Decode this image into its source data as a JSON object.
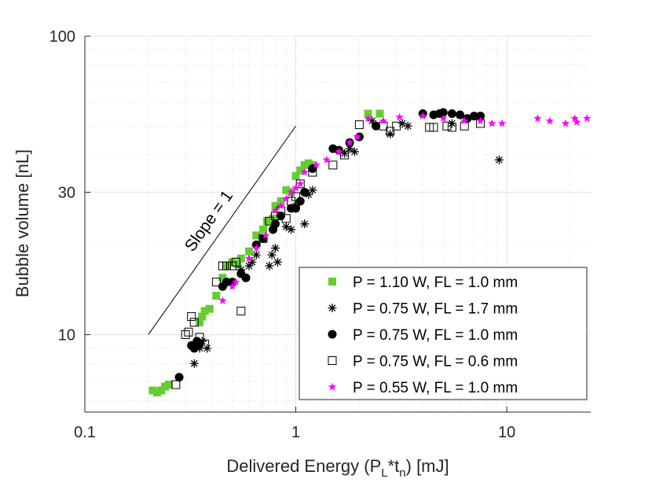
{
  "chart_data": {
    "type": "scatter",
    "xscale": "log",
    "yscale": "log",
    "xlim": [
      0.1,
      25
    ],
    "ylim": [
      5.5,
      100
    ],
    "xticks": [
      0.1,
      1,
      10
    ],
    "xtick_labels": [
      "0.1",
      "1",
      "10"
    ],
    "yticks": [
      10,
      30,
      100
    ],
    "ytick_labels": [
      "10",
      "30",
      "100"
    ],
    "xlabel": {
      "main": "Delivered Energy (P",
      "sub1": "L",
      "mid": "*t",
      "sub2": "n",
      "end": ") [mJ]"
    },
    "ylabel": "Bubble volume [nL]",
    "grid": true,
    "legend_position": "bottom-right",
    "annotation": {
      "text": "Slope = 1",
      "line_x": [
        0.2,
        1.0
      ],
      "line_y": [
        10,
        50
      ]
    },
    "colors": {
      "green": "#66cc33",
      "black": "#000000",
      "magenta": "#ff00ff"
    },
    "series": [
      {
        "name": "P = 1.10 W, FL = 1.0 mm",
        "marker": "filled-square",
        "color": "#66cc33",
        "x": [
          0.21,
          0.22,
          0.23,
          0.24,
          0.25,
          0.35,
          0.36,
          0.37,
          0.39,
          0.42,
          0.45,
          0.47,
          0.5,
          0.53,
          0.55,
          0.6,
          0.65,
          0.7,
          0.73,
          0.78,
          0.8,
          0.85,
          0.9,
          0.95,
          1.0,
          1.05,
          1.1,
          1.15,
          1.2,
          2.2,
          2.5
        ],
        "y": [
          6.5,
          6.4,
          6.5,
          6.7,
          6.8,
          11.0,
          11.5,
          12.0,
          12.2,
          13.5,
          15.5,
          17.0,
          17.5,
          17.2,
          18.0,
          19.0,
          21.5,
          22.5,
          24.0,
          24.5,
          27.0,
          28.0,
          30.5,
          30.0,
          34.0,
          35.5,
          37.0,
          37.5,
          37.0,
          55.0,
          55.0
        ]
      },
      {
        "name": "P = 0.75 W, FL = 1.7 mm",
        "marker": "asterisk",
        "color": "#000000",
        "x": [
          0.33,
          0.35,
          0.36,
          0.38,
          0.55,
          0.6,
          0.62,
          0.65,
          0.75,
          0.77,
          0.8,
          0.82,
          0.9,
          0.95,
          1.0,
          1.1,
          1.15,
          1.2,
          1.7,
          1.8,
          1.9,
          2.3,
          2.8,
          3.2,
          3.4,
          5.5,
          9.2
        ],
        "y": [
          8.0,
          9.0,
          9.5,
          9.0,
          16.5,
          17.0,
          17.5,
          18.5,
          17.0,
          18.5,
          19.5,
          17.5,
          23.0,
          22.5,
          27.0,
          23.5,
          29.5,
          30.5,
          40.5,
          42.0,
          41.0,
          52.0,
          47.0,
          51.0,
          50.0,
          51.0,
          38.5
        ]
      },
      {
        "name": "P = 0.75 W, FL = 1.0 mm",
        "marker": "filled-circle",
        "color": "#000000",
        "x": [
          0.28,
          0.32,
          0.33,
          0.34,
          0.35,
          0.45,
          0.47,
          0.5,
          0.55,
          0.58,
          0.65,
          0.7,
          0.78,
          0.8,
          0.85,
          0.95,
          1.0,
          1.05,
          1.1,
          1.2,
          1.5,
          1.6,
          1.8,
          2.0,
          2.4,
          4.0,
          4.5,
          4.8,
          5.0,
          5.5,
          6.0,
          6.5,
          7.0,
          7.5
        ],
        "y": [
          7.2,
          9.2,
          9.0,
          9.5,
          9.3,
          14.5,
          15.0,
          15.0,
          16.0,
          15.5,
          20.0,
          21.0,
          22.5,
          23.5,
          25.0,
          26.5,
          26.5,
          28.0,
          30.0,
          36.0,
          42.0,
          41.5,
          44.0,
          46.0,
          50.0,
          55.0,
          54.5,
          55.0,
          55.5,
          55.0,
          54.5,
          53.0,
          54.0,
          54.0
        ]
      },
      {
        "name": "P = 0.75 W, FL = 0.6 mm",
        "marker": "open-square",
        "color": "#000000",
        "x": [
          0.27,
          0.3,
          0.31,
          0.32,
          0.33,
          0.35,
          0.37,
          0.42,
          0.45,
          0.47,
          0.5,
          0.52,
          0.55,
          0.7,
          0.75,
          0.8,
          0.85,
          0.9,
          0.95,
          1.0,
          1.05,
          1.2,
          1.5,
          1.7,
          2.0,
          2.6,
          2.8,
          3.0,
          4.3,
          4.5,
          5.2,
          5.5,
          6.3,
          7.5
        ],
        "y": [
          6.8,
          10.0,
          10.2,
          11.5,
          11.0,
          9.8,
          9.3,
          15.0,
          17.0,
          17.0,
          17.0,
          17.5,
          12.0,
          21.0,
          24.0,
          25.0,
          26.0,
          24.5,
          28.0,
          29.0,
          32.0,
          35.0,
          37.0,
          40.0,
          50.5,
          50.0,
          48.0,
          50.0,
          49.5,
          49.5,
          50.0,
          49.5,
          50.0,
          51.0
        ]
      },
      {
        "name": "P = 0.55 W, FL = 1.0 mm",
        "marker": "star",
        "color": "#ff00ff",
        "x": [
          0.45,
          0.5,
          0.52,
          0.6,
          0.65,
          0.72,
          0.8,
          0.85,
          0.9,
          0.95,
          1.0,
          1.05,
          1.1,
          1.25,
          1.4,
          1.6,
          1.8,
          1.95,
          2.2,
          2.6,
          3.1,
          4.0,
          5.0,
          6.3,
          7.5,
          8.5,
          9.5,
          14.0,
          16.0,
          19.0,
          21.0,
          21.5,
          24.0
        ],
        "y": [
          13.0,
          14.5,
          15.0,
          18.0,
          19.5,
          21.5,
          26.0,
          27.0,
          28.5,
          30.0,
          31.0,
          32.0,
          35.0,
          37.0,
          38.5,
          41.0,
          44.0,
          46.0,
          53.0,
          52.0,
          53.5,
          54.0,
          53.0,
          52.0,
          52.0,
          51.0,
          51.0,
          53.0,
          52.0,
          51.0,
          53.0,
          51.5,
          53.0
        ]
      }
    ]
  }
}
